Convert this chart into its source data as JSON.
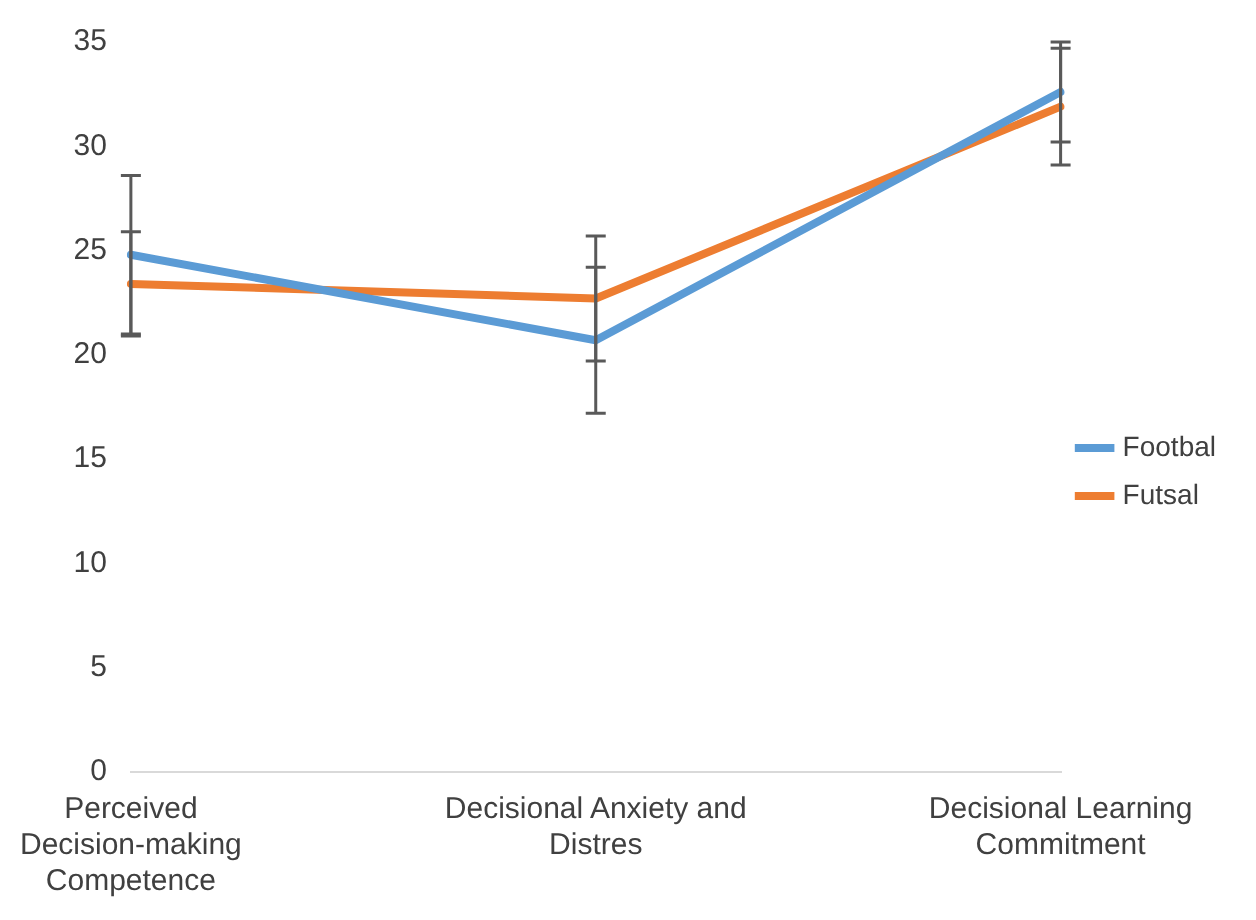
{
  "chart_data": {
    "type": "line",
    "categories": [
      "Perceived Decision-making Competence",
      "Decisional Anxiety and Distres",
      "Decisional Learning Commitment"
    ],
    "series": [
      {
        "name": "Footbal",
        "color": "#5b9bd5",
        "values": [
          24.8,
          20.7,
          32.6
        ],
        "errors": [
          3.8,
          3.5,
          2.4
        ]
      },
      {
        "name": "Futsal",
        "color": "#ed7d31",
        "values": [
          23.4,
          22.7,
          31.9
        ],
        "errors": [
          2.5,
          3.0,
          2.8
        ]
      }
    ],
    "ylim": [
      0,
      35
    ],
    "yticks": [
      0,
      5,
      10,
      15,
      20,
      25,
      30,
      35
    ],
    "grid": false,
    "legend": "right",
    "marker": "none",
    "line_style": "solid"
  }
}
